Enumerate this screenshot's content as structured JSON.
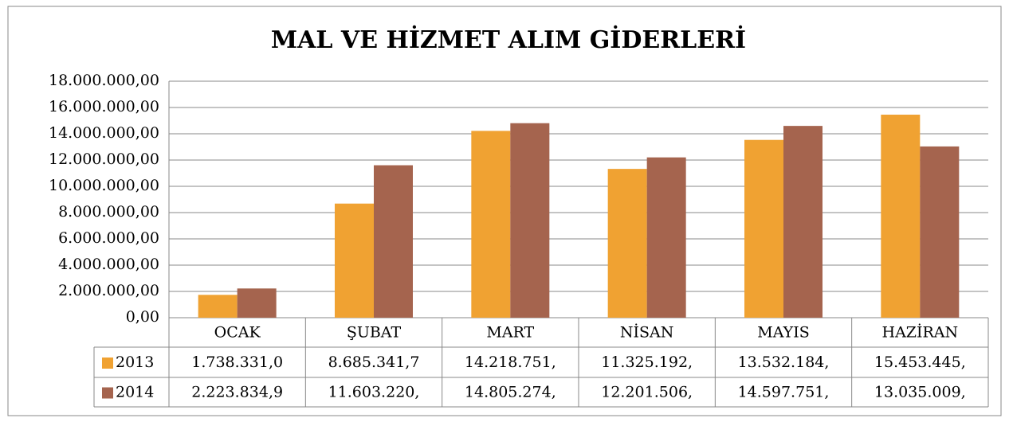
{
  "chart_data": {
    "type": "bar",
    "title": "MAL VE HİZMET ALIM GİDERLERİ",
    "categories": [
      "OCAK",
      "ŞUBAT",
      "MART",
      "NİSAN",
      "MAYIS",
      "HAZİRAN"
    ],
    "series": [
      {
        "name": "2013",
        "color": "#f0a232",
        "values": [
          1738331.0,
          8685341.7,
          14218751,
          11325192,
          13532184,
          15453445
        ],
        "value_labels": [
          "1.738.331,0",
          "8.685.341,7",
          "14.218.751,",
          "11.325.192,",
          "13.532.184,",
          "15.453.445,"
        ]
      },
      {
        "name": "2014",
        "color": "#a5644e",
        "values": [
          2223834.9,
          11603220,
          14805274,
          12201506,
          14597751,
          13035009
        ],
        "value_labels": [
          "2.223.834,9",
          "11.603.220,",
          "14.805.274,",
          "12.201.506,",
          "14.597.751,",
          "13.035.009,"
        ]
      }
    ],
    "ylim": [
      0,
      18000000
    ],
    "yticks": [
      {
        "value": 0,
        "label": "0,00"
      },
      {
        "value": 2000000,
        "label": "2.000.000,00"
      },
      {
        "value": 4000000,
        "label": "4.000.000,00"
      },
      {
        "value": 6000000,
        "label": "6.000.000,00"
      },
      {
        "value": 8000000,
        "label": "8.000.000,00"
      },
      {
        "value": 10000000,
        "label": "10.000.000,00"
      },
      {
        "value": 12000000,
        "label": "12.000.000,00"
      },
      {
        "value": 14000000,
        "label": "14.000.000,00"
      },
      {
        "value": 16000000,
        "label": "16.000.000,00"
      },
      {
        "value": 18000000,
        "label": "18.000.000,00"
      }
    ],
    "grid": true
  }
}
